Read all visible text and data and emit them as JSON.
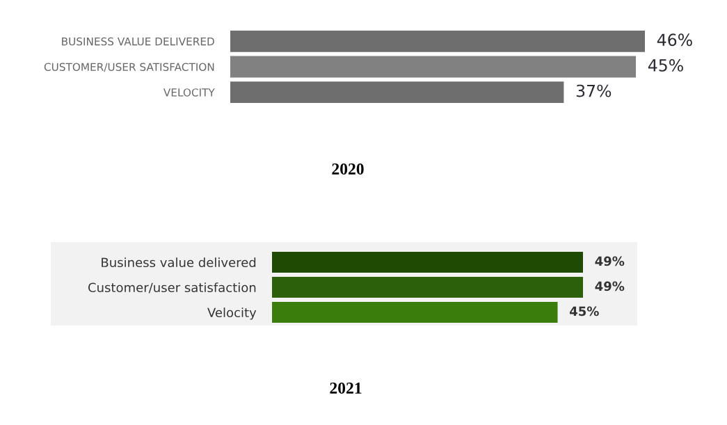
{
  "chart_data": [
    {
      "type": "bar",
      "orientation": "horizontal",
      "title": "2020",
      "categories": [
        "BUSINESS VALUE DELIVERED",
        "CUSTOMER/USER SATISFACTION",
        "VELOCITY"
      ],
      "values": [
        46,
        45,
        37
      ],
      "colors": [
        "#6d6e6d",
        "#808180",
        "#6d6e6d"
      ],
      "value_labels": [
        "46%",
        "45%",
        "37%"
      ]
    },
    {
      "type": "bar",
      "orientation": "horizontal",
      "title": "2021",
      "categories": [
        "Business value delivered",
        "Customer/user satisfaction",
        "Velocity"
      ],
      "values": [
        49,
        49,
        45
      ],
      "colors": [
        "#1f4a04",
        "#2d600b",
        "#3a7d0c"
      ],
      "value_labels": [
        "49%",
        "49%",
        "45%"
      ]
    }
  ]
}
